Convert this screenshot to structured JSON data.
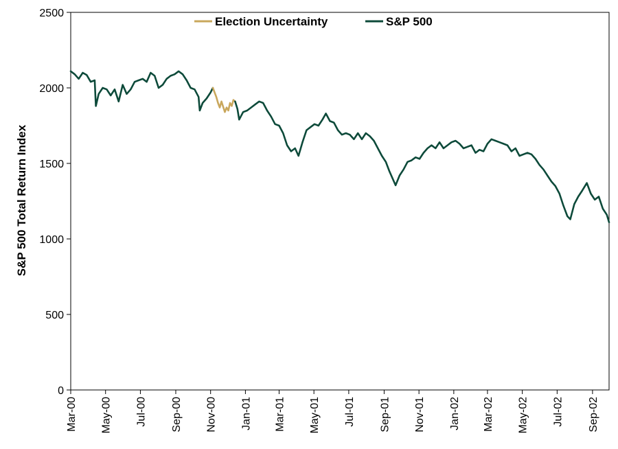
{
  "chart_data": {
    "type": "line",
    "title": "",
    "xlabel": "",
    "ylabel": "S&P 500 Total Return Index",
    "ylim": [
      0,
      2500
    ],
    "yticks": [
      0,
      500,
      1000,
      1500,
      2000,
      2500
    ],
    "x_range": [
      "2000-03-01",
      "2002-09-30"
    ],
    "xticks": [
      {
        "label": "Mar-00",
        "date": "2000-03-01"
      },
      {
        "label": "May-00",
        "date": "2000-05-01"
      },
      {
        "label": "Jul-00",
        "date": "2000-07-01"
      },
      {
        "label": "Sep-00",
        "date": "2000-09-01"
      },
      {
        "label": "Nov-00",
        "date": "2000-11-01"
      },
      {
        "label": "Jan-01",
        "date": "2001-01-01"
      },
      {
        "label": "Mar-01",
        "date": "2001-03-01"
      },
      {
        "label": "May-01",
        "date": "2001-05-01"
      },
      {
        "label": "Jul-01",
        "date": "2001-07-01"
      },
      {
        "label": "Sep-01",
        "date": "2001-09-01"
      },
      {
        "label": "Nov-01",
        "date": "2001-11-01"
      },
      {
        "label": "Jan-02",
        "date": "2002-01-01"
      },
      {
        "label": "Mar-02",
        "date": "2002-03-01"
      },
      {
        "label": "May-02",
        "date": "2002-05-01"
      },
      {
        "label": "Jul-02",
        "date": "2002-07-01"
      },
      {
        "label": "Sep-02",
        "date": "2002-09-01"
      }
    ],
    "grid": false,
    "legend_position": "top-center",
    "series": [
      {
        "name": "S&P 500",
        "color": "#0d4a3a",
        "points": [
          [
            "2000-03-01",
            2110
          ],
          [
            "2000-03-08",
            2090
          ],
          [
            "2000-03-15",
            2060
          ],
          [
            "2000-03-22",
            2100
          ],
          [
            "2000-03-29",
            2085
          ],
          [
            "2000-04-05",
            2040
          ],
          [
            "2000-04-12",
            2050
          ],
          [
            "2000-04-14",
            1880
          ],
          [
            "2000-04-19",
            1960
          ],
          [
            "2000-04-26",
            2000
          ],
          [
            "2000-05-03",
            1990
          ],
          [
            "2000-05-10",
            1950
          ],
          [
            "2000-05-17",
            1990
          ],
          [
            "2000-05-24",
            1910
          ],
          [
            "2000-05-31",
            2020
          ],
          [
            "2000-06-07",
            1960
          ],
          [
            "2000-06-14",
            1990
          ],
          [
            "2000-06-21",
            2040
          ],
          [
            "2000-06-28",
            2050
          ],
          [
            "2000-07-05",
            2060
          ],
          [
            "2000-07-12",
            2040
          ],
          [
            "2000-07-19",
            2100
          ],
          [
            "2000-07-26",
            2080
          ],
          [
            "2000-08-02",
            2000
          ],
          [
            "2000-08-09",
            2020
          ],
          [
            "2000-08-16",
            2060
          ],
          [
            "2000-08-23",
            2080
          ],
          [
            "2000-08-30",
            2090
          ],
          [
            "2000-09-06",
            2110
          ],
          [
            "2000-09-13",
            2090
          ],
          [
            "2000-09-20",
            2050
          ],
          [
            "2000-09-27",
            2000
          ],
          [
            "2000-10-04",
            1990
          ],
          [
            "2000-10-11",
            1940
          ],
          [
            "2000-10-13",
            1850
          ],
          [
            "2000-10-18",
            1900
          ],
          [
            "2000-10-25",
            1930
          ],
          [
            "2000-11-01",
            1970
          ],
          [
            "2000-11-05",
            2000
          ]
        ]
      },
      {
        "name": "Election Uncertainty",
        "color": "#c9a75c",
        "points": [
          [
            "2000-11-05",
            2000
          ],
          [
            "2000-11-08",
            1970
          ],
          [
            "2000-11-11",
            1940
          ],
          [
            "2000-11-14",
            1900
          ],
          [
            "2000-11-17",
            1870
          ],
          [
            "2000-11-20",
            1910
          ],
          [
            "2000-11-23",
            1875
          ],
          [
            "2000-11-26",
            1840
          ],
          [
            "2000-11-29",
            1870
          ],
          [
            "2000-12-02",
            1850
          ],
          [
            "2000-12-05",
            1900
          ],
          [
            "2000-12-08",
            1880
          ],
          [
            "2000-12-11",
            1920
          ],
          [
            "2000-12-14",
            1910
          ]
        ]
      },
      {
        "name": "S&P 500",
        "color": "#0d4a3a",
        "points": [
          [
            "2000-12-14",
            1910
          ],
          [
            "2000-12-18",
            1860
          ],
          [
            "2000-12-21",
            1790
          ],
          [
            "2000-12-28",
            1840
          ],
          [
            "2001-01-04",
            1850
          ],
          [
            "2001-01-11",
            1870
          ],
          [
            "2001-01-18",
            1890
          ],
          [
            "2001-01-25",
            1910
          ],
          [
            "2001-02-01",
            1900
          ],
          [
            "2001-02-08",
            1850
          ],
          [
            "2001-02-15",
            1810
          ],
          [
            "2001-02-22",
            1760
          ],
          [
            "2001-03-01",
            1750
          ],
          [
            "2001-03-08",
            1700
          ],
          [
            "2001-03-15",
            1620
          ],
          [
            "2001-03-22",
            1580
          ],
          [
            "2001-03-29",
            1600
          ],
          [
            "2001-04-04",
            1550
          ],
          [
            "2001-04-11",
            1640
          ],
          [
            "2001-04-18",
            1720
          ],
          [
            "2001-04-25",
            1740
          ],
          [
            "2001-05-02",
            1760
          ],
          [
            "2001-05-09",
            1750
          ],
          [
            "2001-05-16",
            1790
          ],
          [
            "2001-05-22",
            1830
          ],
          [
            "2001-05-29",
            1780
          ],
          [
            "2001-06-05",
            1770
          ],
          [
            "2001-06-12",
            1720
          ],
          [
            "2001-06-19",
            1690
          ],
          [
            "2001-06-26",
            1700
          ],
          [
            "2001-07-03",
            1690
          ],
          [
            "2001-07-10",
            1660
          ],
          [
            "2001-07-17",
            1700
          ],
          [
            "2001-07-24",
            1660
          ],
          [
            "2001-07-31",
            1700
          ],
          [
            "2001-08-07",
            1680
          ],
          [
            "2001-08-14",
            1650
          ],
          [
            "2001-08-21",
            1600
          ],
          [
            "2001-08-28",
            1550
          ],
          [
            "2001-09-04",
            1510
          ],
          [
            "2001-09-10",
            1450
          ],
          [
            "2001-09-21",
            1355
          ],
          [
            "2001-09-28",
            1420
          ],
          [
            "2001-10-05",
            1460
          ],
          [
            "2001-10-12",
            1510
          ],
          [
            "2001-10-19",
            1520
          ],
          [
            "2001-10-26",
            1540
          ],
          [
            "2001-11-02",
            1530
          ],
          [
            "2001-11-09",
            1570
          ],
          [
            "2001-11-16",
            1600
          ],
          [
            "2001-11-23",
            1620
          ],
          [
            "2001-11-30",
            1600
          ],
          [
            "2001-12-07",
            1640
          ],
          [
            "2001-12-14",
            1600
          ],
          [
            "2001-12-21",
            1620
          ],
          [
            "2001-12-28",
            1640
          ],
          [
            "2002-01-04",
            1650
          ],
          [
            "2002-01-11",
            1630
          ],
          [
            "2002-01-18",
            1600
          ],
          [
            "2002-01-25",
            1610
          ],
          [
            "2002-02-01",
            1620
          ],
          [
            "2002-02-08",
            1570
          ],
          [
            "2002-02-15",
            1590
          ],
          [
            "2002-02-22",
            1580
          ],
          [
            "2002-03-01",
            1630
          ],
          [
            "2002-03-08",
            1660
          ],
          [
            "2002-03-15",
            1650
          ],
          [
            "2002-03-22",
            1640
          ],
          [
            "2002-03-29",
            1630
          ],
          [
            "2002-04-05",
            1620
          ],
          [
            "2002-04-12",
            1580
          ],
          [
            "2002-04-19",
            1600
          ],
          [
            "2002-04-26",
            1550
          ],
          [
            "2002-05-03",
            1560
          ],
          [
            "2002-05-10",
            1570
          ],
          [
            "2002-05-17",
            1560
          ],
          [
            "2002-05-24",
            1530
          ],
          [
            "2002-05-31",
            1490
          ],
          [
            "2002-06-07",
            1460
          ],
          [
            "2002-06-14",
            1420
          ],
          [
            "2002-06-21",
            1380
          ],
          [
            "2002-06-28",
            1350
          ],
          [
            "2002-07-05",
            1300
          ],
          [
            "2002-07-12",
            1220
          ],
          [
            "2002-07-19",
            1150
          ],
          [
            "2002-07-24",
            1130
          ],
          [
            "2002-07-31",
            1230
          ],
          [
            "2002-08-07",
            1280
          ],
          [
            "2002-08-14",
            1320
          ],
          [
            "2002-08-22",
            1370
          ],
          [
            "2002-08-29",
            1300
          ],
          [
            "2002-09-05",
            1260
          ],
          [
            "2002-09-12",
            1280
          ],
          [
            "2002-09-19",
            1200
          ],
          [
            "2002-09-26",
            1160
          ],
          [
            "2002-09-30",
            1110
          ]
        ]
      }
    ],
    "legend": [
      {
        "label": "Election Uncertainty",
        "color": "#c9a75c"
      },
      {
        "label": "S&P 500",
        "color": "#0d4a3a"
      }
    ]
  }
}
